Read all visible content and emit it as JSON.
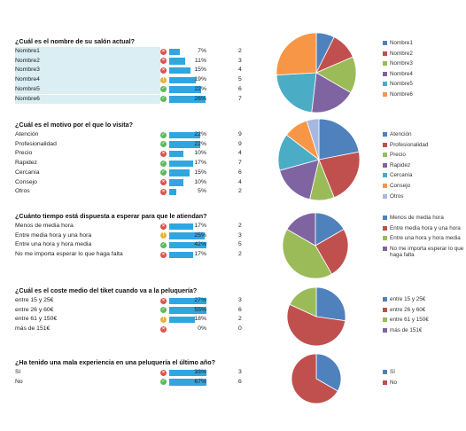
{
  "chart_data": [
    {
      "type": "pie",
      "title": "¿Cuál es el nombre de su salón actual?",
      "categories": [
        "Nombre1",
        "Nombre2",
        "Nombre3",
        "Nombre4",
        "Nombre5",
        "Nombre6"
      ],
      "percent_labels": [
        "7%",
        "11%",
        "15%",
        "19%",
        "22%",
        "26%"
      ],
      "values": [
        2,
        3,
        4,
        5,
        6,
        7
      ],
      "status": [
        "r",
        "r",
        "r",
        "y",
        "g",
        "g"
      ],
      "highlight": true,
      "colors": [
        "#4f81bd",
        "#c0504d",
        "#9bbb59",
        "#8064a2",
        "#4bacc6",
        "#f79646"
      ]
    },
    {
      "type": "pie",
      "title": "¿Cuál es el motivo por el que lo visita?",
      "categories": [
        "Atención",
        "Profesionalidad",
        "Precio",
        "Rapidez",
        "Cercanía",
        "Consejo",
        "Otros"
      ],
      "percent_labels": [
        "22%",
        "22%",
        "10%",
        "17%",
        "15%",
        "10%",
        "5%"
      ],
      "values": [
        9,
        9,
        4,
        7,
        6,
        4,
        2
      ],
      "status": [
        "g",
        "g",
        "r",
        "g",
        "g",
        "r",
        "r"
      ],
      "highlight": false,
      "colors": [
        "#4f81bd",
        "#c0504d",
        "#9bbb59",
        "#8064a2",
        "#4bacc6",
        "#f79646",
        "#a5b8e0"
      ]
    },
    {
      "type": "pie",
      "title": "¿Cuánto tiempo está dispuesta a esperar para que le atiendan?",
      "categories": [
        "Menos de media hora",
        "Entre media hora y una hora",
        "Entre una hora y hora media",
        "No me importa esperar lo que haga falta"
      ],
      "table_labels": [
        "Menos de media hora",
        "Entre media hora y una hora",
        "Entre una hora y hora media",
        "No me importa esperar lo que haga falta"
      ],
      "percent_labels": [
        "17%",
        "25%",
        "42%",
        "17%"
      ],
      "values": [
        2,
        3,
        5,
        2
      ],
      "status": [
        "r",
        "y",
        "g",
        "r"
      ],
      "highlight": false,
      "colors": [
        "#4f81bd",
        "#c0504d",
        "#9bbb59",
        "#8064a2"
      ]
    },
    {
      "type": "pie",
      "title": "¿Cuál es el coste medio del tiket cuando va a la peluquería?",
      "categories": [
        "entre 15 y 25€",
        "entre 26 y 60€",
        "entre 61 y 150€",
        "más de 151€"
      ],
      "percent_labels": [
        "27%",
        "55%",
        "18%",
        "0%"
      ],
      "values": [
        3,
        6,
        2,
        0
      ],
      "status": [
        "r",
        "g",
        "y",
        "r"
      ],
      "highlight": false,
      "colors": [
        "#4f81bd",
        "#c0504d",
        "#9bbb59",
        "#8064a2"
      ]
    },
    {
      "type": "pie",
      "title": "¿Ha tenido una mala experiencia en una peluquería el último año?",
      "categories": [
        "Sí",
        "No"
      ],
      "percent_labels": [
        "33%",
        "67%"
      ],
      "values": [
        3,
        6
      ],
      "status": [
        "r",
        "g"
      ],
      "highlight": false,
      "colors": [
        "#4f81bd",
        "#c0504d"
      ]
    }
  ]
}
